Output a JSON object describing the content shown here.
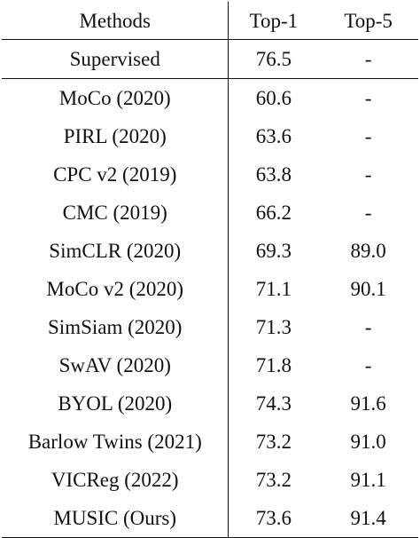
{
  "table": {
    "headers": [
      "Methods",
      "Top-1",
      "Top-5"
    ],
    "rows": [
      {
        "method": "Supervised",
        "top1": "76.5",
        "top5": "-"
      },
      {
        "method": "MoCo (2020)",
        "top1": "60.6",
        "top5": "-"
      },
      {
        "method": "PIRL (2020)",
        "top1": "63.6",
        "top5": "-"
      },
      {
        "method": "CPC v2 (2019)",
        "top1": "63.8",
        "top5": "-"
      },
      {
        "method": "CMC (2019)",
        "top1": "66.2",
        "top5": "-"
      },
      {
        "method": "SimCLR (2020)",
        "top1": "69.3",
        "top5": "89.0"
      },
      {
        "method": "MoCo v2 (2020)",
        "top1": "71.1",
        "top5": "90.1"
      },
      {
        "method": "SimSiam (2020)",
        "top1": "71.3",
        "top5": "-"
      },
      {
        "method": "SwAV (2020)",
        "top1": "71.8",
        "top5": "-"
      },
      {
        "method": "BYOL (2020)",
        "top1": "74.3",
        "top5": "91.6"
      },
      {
        "method": "Barlow Twins (2021)",
        "top1": "73.2",
        "top5": "91.0"
      },
      {
        "method": "VICReg (2022)",
        "top1": "73.2",
        "top5": "91.1"
      },
      {
        "method": "MUSIC (Ours)",
        "top1": "73.6",
        "top5": "91.4"
      }
    ]
  }
}
